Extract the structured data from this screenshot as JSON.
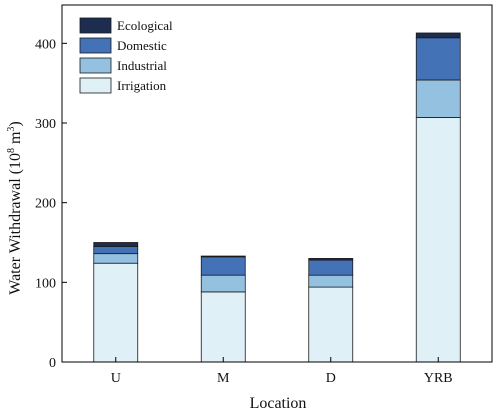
{
  "chart_data": {
    "type": "bar",
    "stacked": true,
    "categories": [
      "U",
      "M",
      "D",
      "YRB"
    ],
    "series": [
      {
        "name": "Irrigation",
        "color": "#dff0f7",
        "values": [
          124,
          88,
          94,
          307
        ]
      },
      {
        "name": "Industrial",
        "color": "#94c1e0",
        "values": [
          12,
          21,
          15,
          47
        ]
      },
      {
        "name": "Domestic",
        "color": "#4472b6",
        "values": [
          9,
          23,
          19,
          53
        ]
      },
      {
        "name": "Ecological",
        "color": "#1c2d4f",
        "values": [
          5,
          1,
          2,
          6
        ]
      }
    ],
    "xlabel": "Location",
    "ylabel_main": "Water Withdrawal (10",
    "ylabel_sup1": "8",
    "ylabel_mid": " m",
    "ylabel_sup2": "3",
    "ylabel_end": ")",
    "ylim": [
      0,
      445
    ],
    "yticks": [
      0,
      100,
      200,
      300,
      400
    ],
    "grid": false,
    "legend_placement": "top-left",
    "legend_order": [
      "Ecological",
      "Domestic",
      "Industrial",
      "Irrigation"
    ]
  }
}
